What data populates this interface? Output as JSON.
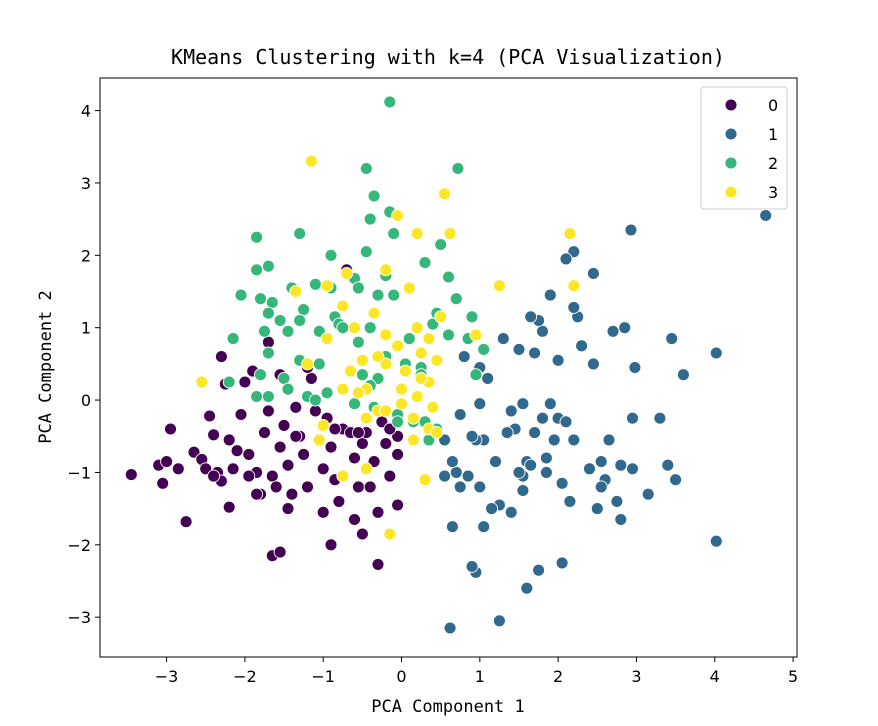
{
  "chart_data": {
    "type": "scatter",
    "title": "KMeans Clustering with k=4 (PCA Visualization)",
    "xlabel": "PCA Component 1",
    "ylabel": "PCA Component 2",
    "xlim": [
      -3.85,
      5.05
    ],
    "ylim": [
      -3.55,
      4.45
    ],
    "xticks": [
      -3,
      -2,
      -1,
      0,
      1,
      2,
      3,
      4,
      5
    ],
    "yticks": [
      -3,
      -2,
      -1,
      0,
      1,
      2,
      3,
      4
    ],
    "grid": false,
    "legend": {
      "placement": "top-right"
    },
    "series": [
      {
        "name": "0",
        "color": "#440154",
        "points": [
          [
            -3.45,
            -1.03
          ],
          [
            -3.1,
            -0.9
          ],
          [
            -3.0,
            -0.85
          ],
          [
            -3.05,
            -1.15
          ],
          [
            -2.95,
            -0.4
          ],
          [
            -2.85,
            -0.95
          ],
          [
            -2.75,
            -1.68
          ],
          [
            -2.65,
            -0.72
          ],
          [
            -2.55,
            -0.82
          ],
          [
            -2.5,
            -0.95
          ],
          [
            -2.45,
            -0.22
          ],
          [
            -2.4,
            -0.48
          ],
          [
            -2.35,
            -1.0
          ],
          [
            -2.3,
            -1.12
          ],
          [
            -2.3,
            0.6
          ],
          [
            -2.25,
            0.22
          ],
          [
            -2.2,
            -0.55
          ],
          [
            -2.15,
            -0.95
          ],
          [
            -2.2,
            -1.48
          ],
          [
            -2.1,
            -0.7
          ],
          [
            -2.05,
            -0.2
          ],
          [
            -2.0,
            0.25
          ],
          [
            -1.95,
            -0.75
          ],
          [
            -1.9,
            0.4
          ],
          [
            -1.85,
            -1.0
          ],
          [
            -1.8,
            -1.3
          ],
          [
            -1.75,
            -0.45
          ],
          [
            -1.7,
            -0.15
          ],
          [
            -1.65,
            -1.05
          ],
          [
            -1.6,
            -1.2
          ],
          [
            -1.55,
            -0.65
          ],
          [
            -1.5,
            -0.35
          ],
          [
            -1.45,
            -0.9
          ],
          [
            -1.4,
            -1.3
          ],
          [
            -1.35,
            -0.1
          ],
          [
            -1.3,
            -0.5
          ],
          [
            -1.25,
            -0.75
          ],
          [
            -1.2,
            -1.2
          ],
          [
            -1.15,
            0.3
          ],
          [
            -1.1,
            -0.15
          ],
          [
            -1.05,
            -0.55
          ],
          [
            -1.0,
            -0.95
          ],
          [
            -0.95,
            -0.25
          ],
          [
            -0.9,
            -0.65
          ],
          [
            -0.85,
            -1.1
          ],
          [
            -0.8,
            -1.4
          ],
          [
            -0.75,
            -0.4
          ],
          [
            -0.7,
            1.8
          ],
          [
            -0.65,
            -0.45
          ],
          [
            -0.6,
            -0.8
          ],
          [
            -0.55,
            -1.2
          ],
          [
            -0.5,
            -0.6
          ],
          [
            -0.45,
            -0.45
          ],
          [
            -0.4,
            -1.2
          ],
          [
            -0.35,
            -0.85
          ],
          [
            -0.3,
            -1.55
          ],
          [
            -0.3,
            -2.27
          ],
          [
            -0.25,
            -0.3
          ],
          [
            -0.2,
            -0.6
          ],
          [
            -0.15,
            -1.05
          ],
          [
            -0.05,
            -0.5
          ],
          [
            -0.05,
            -0.75
          ],
          [
            -0.05,
            -1.45
          ],
          [
            -1.0,
            -1.55
          ],
          [
            -0.9,
            -2.0
          ],
          [
            -1.65,
            -2.15
          ],
          [
            -1.55,
            -2.1
          ],
          [
            -1.85,
            -1.3
          ],
          [
            -1.55,
            0.35
          ],
          [
            -1.2,
            0.45
          ],
          [
            -1.35,
            -0.5
          ],
          [
            -0.85,
            -0.4
          ],
          [
            -0.55,
            -0.45
          ],
          [
            -1.7,
            0.8
          ],
          [
            -0.15,
            -0.4
          ],
          [
            -0.6,
            -1.65
          ],
          [
            -1.45,
            -1.5
          ],
          [
            -2.4,
            -1.05
          ],
          [
            -1.95,
            -1.05
          ],
          [
            -0.5,
            -1.85
          ]
        ]
      },
      {
        "name": "1",
        "color": "#31688e",
        "points": [
          [
            4.65,
            2.55
          ],
          [
            4.02,
            0.65
          ],
          [
            4.02,
            -1.95
          ],
          [
            3.6,
            0.35
          ],
          [
            3.5,
            -1.1
          ],
          [
            3.4,
            -0.9
          ],
          [
            3.45,
            0.85
          ],
          [
            3.3,
            -0.25
          ],
          [
            3.15,
            -1.3
          ],
          [
            2.98,
            0.45
          ],
          [
            2.95,
            -0.25
          ],
          [
            2.95,
            -0.95
          ],
          [
            2.93,
            2.35
          ],
          [
            2.85,
            1.0
          ],
          [
            2.8,
            -0.9
          ],
          [
            2.8,
            -1.65
          ],
          [
            2.75,
            -1.4
          ],
          [
            2.7,
            0.95
          ],
          [
            2.65,
            -0.55
          ],
          [
            2.6,
            -1.1
          ],
          [
            2.55,
            -0.85
          ],
          [
            2.5,
            -1.5
          ],
          [
            2.45,
            1.75
          ],
          [
            2.45,
            0.5
          ],
          [
            2.4,
            -0.95
          ],
          [
            2.3,
            0.75
          ],
          [
            2.25,
            1.15
          ],
          [
            2.2,
            2.05
          ],
          [
            2.2,
            1.28
          ],
          [
            2.2,
            -0.55
          ],
          [
            2.15,
            -1.4
          ],
          [
            2.1,
            1.95
          ],
          [
            2.05,
            -1.15
          ],
          [
            2.05,
            -2.25
          ],
          [
            2.0,
            0.55
          ],
          [
            2.0,
            -0.25
          ],
          [
            1.95,
            -0.55
          ],
          [
            1.9,
            1.45
          ],
          [
            1.85,
            -0.8
          ],
          [
            1.85,
            -1.0
          ],
          [
            1.8,
            0.95
          ],
          [
            1.8,
            -0.25
          ],
          [
            1.75,
            1.1
          ],
          [
            1.7,
            0.65
          ],
          [
            1.75,
            -2.35
          ],
          [
            1.7,
            -0.45
          ],
          [
            1.65,
            1.15
          ],
          [
            1.6,
            -0.85
          ],
          [
            1.6,
            -2.6
          ],
          [
            1.55,
            -0.05
          ],
          [
            1.55,
            -1.05
          ],
          [
            1.5,
            0.7
          ],
          [
            1.45,
            -0.4
          ],
          [
            1.4,
            -0.15
          ],
          [
            1.4,
            -1.55
          ],
          [
            1.35,
            -0.45
          ],
          [
            1.3,
            0.85
          ],
          [
            1.25,
            -1.45
          ],
          [
            1.25,
            -3.05
          ],
          [
            1.2,
            -0.85
          ],
          [
            1.15,
            -1.5
          ],
          [
            1.1,
            0.3
          ],
          [
            1.05,
            -0.55
          ],
          [
            1.0,
            -1.2
          ],
          [
            0.95,
            -0.55
          ],
          [
            0.95,
            -2.38
          ],
          [
            0.9,
            -0.5
          ],
          [
            0.9,
            -2.3
          ],
          [
            0.8,
            0.6
          ],
          [
            0.75,
            -0.2
          ],
          [
            0.7,
            -1.0
          ],
          [
            0.65,
            -0.85
          ],
          [
            0.65,
            -1.75
          ],
          [
            0.62,
            -3.15
          ],
          [
            0.55,
            -1.05
          ],
          [
            0.55,
            -0.55
          ],
          [
            1.0,
            0.45
          ],
          [
            1.65,
            -0.9
          ],
          [
            2.1,
            -0.3
          ],
          [
            2.55,
            -1.2
          ],
          [
            1.05,
            -1.75
          ],
          [
            0.75,
            -1.2
          ],
          [
            1.0,
            -0.05
          ],
          [
            1.9,
            -0.05
          ],
          [
            1.55,
            -1.25
          ],
          [
            0.85,
            -1.05
          ],
          [
            1.5,
            -1.0
          ]
        ]
      },
      {
        "name": "2",
        "color": "#35b779",
        "points": [
          [
            -0.15,
            4.12
          ],
          [
            0.72,
            3.2
          ],
          [
            -0.45,
            3.2
          ],
          [
            -0.35,
            2.82
          ],
          [
            -0.15,
            2.6
          ],
          [
            -0.4,
            2.5
          ],
          [
            -0.1,
            2.3
          ],
          [
            -1.85,
            2.25
          ],
          [
            -1.3,
            2.3
          ],
          [
            -0.45,
            2.05
          ],
          [
            0.3,
            1.9
          ],
          [
            0.5,
            2.15
          ],
          [
            -0.9,
            2.0
          ],
          [
            -1.85,
            1.8
          ],
          [
            -1.7,
            1.85
          ],
          [
            -1.1,
            1.6
          ],
          [
            -0.6,
            1.68
          ],
          [
            -0.2,
            1.72
          ],
          [
            -0.55,
            1.55
          ],
          [
            -0.9,
            1.55
          ],
          [
            -2.05,
            1.45
          ],
          [
            -1.8,
            1.4
          ],
          [
            -1.65,
            1.35
          ],
          [
            -1.4,
            1.55
          ],
          [
            -1.25,
            1.25
          ],
          [
            -1.7,
            1.2
          ],
          [
            -1.55,
            1.1
          ],
          [
            -1.3,
            1.1
          ],
          [
            -0.85,
            1.15
          ],
          [
            -0.8,
            1.05
          ],
          [
            -1.75,
            0.95
          ],
          [
            -1.45,
            0.95
          ],
          [
            -1.05,
            0.95
          ],
          [
            -0.75,
            1.0
          ],
          [
            -0.4,
            1.0
          ],
          [
            -0.3,
            1.45
          ],
          [
            -0.1,
            1.45
          ],
          [
            0.2,
            1.0
          ],
          [
            0.4,
            1.05
          ],
          [
            0.45,
            1.2
          ],
          [
            -2.15,
            0.85
          ],
          [
            -1.7,
            0.65
          ],
          [
            -1.3,
            0.55
          ],
          [
            -1.05,
            0.5
          ],
          [
            -0.55,
            0.8
          ],
          [
            -0.2,
            0.6
          ],
          [
            0.1,
            0.85
          ],
          [
            0.25,
            0.45
          ],
          [
            0.85,
            0.85
          ],
          [
            0.9,
            1.15
          ],
          [
            1.05,
            0.7
          ],
          [
            -2.2,
            0.25
          ],
          [
            -1.8,
            0.35
          ],
          [
            -1.5,
            0.3
          ],
          [
            -1.2,
            0.05
          ],
          [
            -0.95,
            0.1
          ],
          [
            -0.5,
            0.35
          ],
          [
            -0.3,
            0.3
          ],
          [
            0.25,
            0.35
          ],
          [
            0.95,
            0.35
          ],
          [
            -1.85,
            0.05
          ],
          [
            -1.7,
            0.05
          ],
          [
            -1.45,
            0.15
          ],
          [
            -1.1,
            0.0
          ],
          [
            -0.6,
            -0.05
          ],
          [
            -0.35,
            -0.1
          ],
          [
            -0.05,
            -0.2
          ],
          [
            0.15,
            -0.3
          ],
          [
            0.35,
            -0.55
          ],
          [
            0.45,
            -0.4
          ],
          [
            -0.4,
            0.2
          ],
          [
            0.6,
            0.9
          ],
          [
            0.05,
            0.5
          ],
          [
            -0.05,
            -0.3
          ],
          [
            0.3,
            -0.3
          ],
          [
            0.7,
            1.4
          ],
          [
            0.6,
            1.7
          ]
        ]
      },
      {
        "name": "3",
        "color": "#fde725",
        "points": [
          [
            -1.15,
            3.3
          ],
          [
            0.55,
            2.85
          ],
          [
            0.62,
            2.3
          ],
          [
            -0.05,
            2.55
          ],
          [
            0.2,
            2.3
          ],
          [
            2.15,
            2.3
          ],
          [
            2.2,
            1.58
          ],
          [
            1.25,
            1.58
          ],
          [
            -1.35,
            1.5
          ],
          [
            -0.95,
            1.58
          ],
          [
            -0.7,
            1.75
          ],
          [
            -0.2,
            1.8
          ],
          [
            0.1,
            1.55
          ],
          [
            -0.75,
            1.3
          ],
          [
            -0.6,
            1.0
          ],
          [
            -0.35,
            1.2
          ],
          [
            -0.2,
            0.9
          ],
          [
            -0.05,
            0.75
          ],
          [
            0.2,
            1.0
          ],
          [
            0.35,
            0.85
          ],
          [
            0.5,
            1.15
          ],
          [
            0.95,
            0.9
          ],
          [
            -0.65,
            0.4
          ],
          [
            -0.45,
            0.15
          ],
          [
            -0.2,
            0.5
          ],
          [
            0.05,
            0.4
          ],
          [
            0.25,
            0.65
          ],
          [
            0.35,
            0.25
          ],
          [
            0.45,
            0.55
          ],
          [
            -2.55,
            0.25
          ],
          [
            -1.2,
            0.5
          ],
          [
            -0.95,
            0.85
          ],
          [
            -0.75,
            0.15
          ],
          [
            -0.55,
            0.1
          ],
          [
            -0.3,
            -0.15
          ],
          [
            0.0,
            0.15
          ],
          [
            0.2,
            0.05
          ],
          [
            0.4,
            -0.1
          ],
          [
            -1.05,
            -0.55
          ],
          [
            -1.0,
            -0.35
          ],
          [
            -0.45,
            -0.25
          ],
          [
            -0.2,
            -0.15
          ],
          [
            0.0,
            -0.05
          ],
          [
            0.15,
            -0.25
          ],
          [
            0.35,
            -0.4
          ],
          [
            -0.75,
            -1.05
          ],
          [
            -0.45,
            -0.95
          ],
          [
            -0.15,
            -1.85
          ],
          [
            0.3,
            -1.1
          ],
          [
            0.45,
            -0.45
          ],
          [
            -0.3,
            0.6
          ],
          [
            0.15,
            -0.55
          ],
          [
            0.25,
            0.3
          ],
          [
            -0.5,
            0.55
          ]
        ]
      }
    ]
  }
}
